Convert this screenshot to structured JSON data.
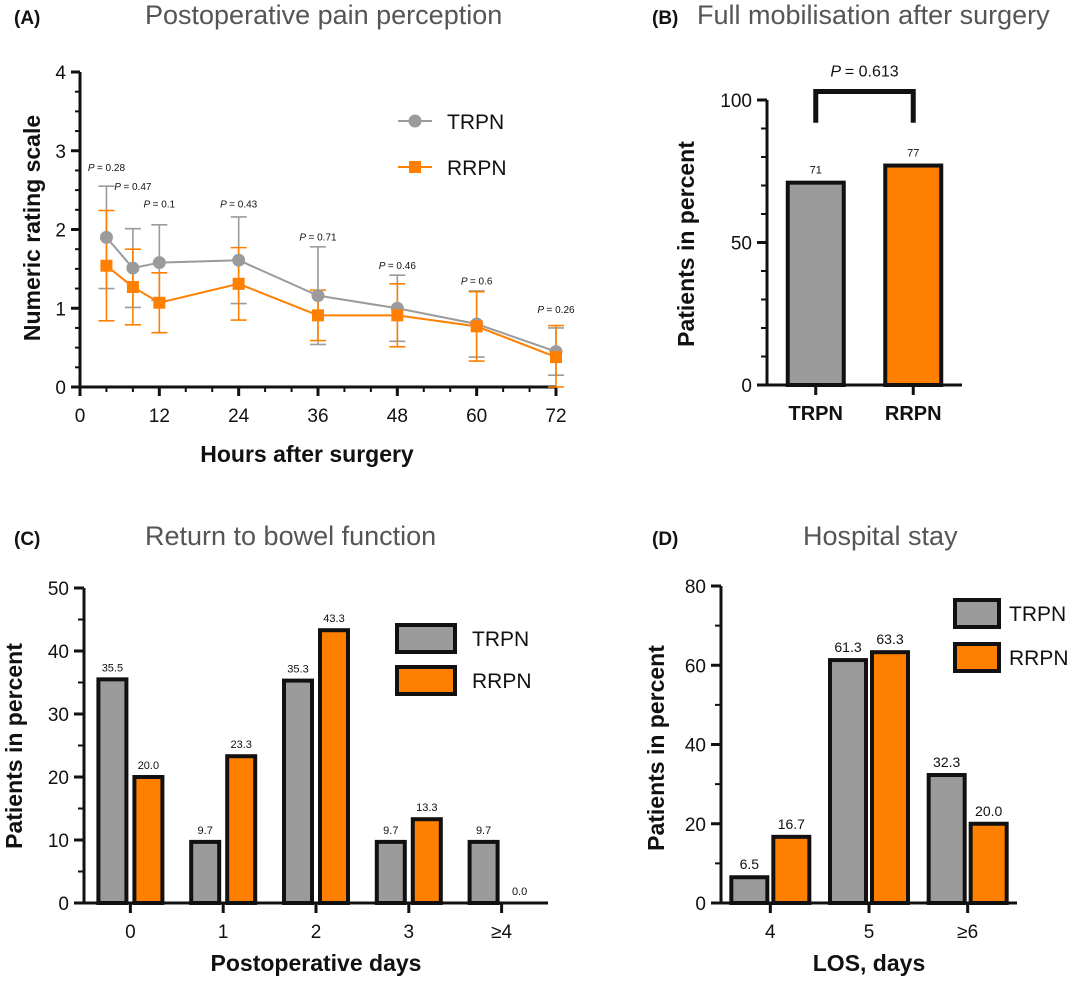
{
  "colors": {
    "TRPN": "#9b9b9b",
    "RRPN": "#ff8000",
    "ink": "#111111",
    "title": "#555555"
  },
  "chart_data": [
    {
      "panel": "(A)",
      "type": "line",
      "title": "Postoperative pain perception",
      "xlabel": "Hours after surgery",
      "ylabel": "Numeric rating scale",
      "xlim": [
        0,
        72
      ],
      "ylim": [
        0,
        4
      ],
      "xticks": [
        "0",
        "12",
        "24",
        "36",
        "48",
        "60",
        "72"
      ],
      "yticks": [
        "0",
        "1",
        "2",
        "3",
        "4"
      ],
      "legend_position": "top-right",
      "series": [
        {
          "name": "TRPN",
          "marker": "circle",
          "x": [
            4,
            8,
            12,
            24,
            36,
            48,
            60,
            72
          ],
          "y": [
            1.9,
            1.51,
            1.58,
            1.61,
            1.16,
            1.0,
            0.8,
            0.45
          ],
          "err": [
            0.65,
            0.5,
            0.48,
            0.55,
            0.62,
            0.42,
            0.42,
            0.3
          ]
        },
        {
          "name": "RRPN",
          "marker": "square",
          "x": [
            4,
            8,
            12,
            24,
            36,
            48,
            60,
            72
          ],
          "y": [
            1.54,
            1.27,
            1.07,
            1.31,
            0.91,
            0.91,
            0.77,
            0.38
          ],
          "err": [
            0.7,
            0.48,
            0.38,
            0.46,
            0.32,
            0.4,
            0.44,
            0.4
          ]
        }
      ],
      "p_values": [
        {
          "x": 4,
          "label": "= 0.28",
          "at": 2.74
        },
        {
          "x": 8,
          "label": "= 0.47",
          "at": 2.5
        },
        {
          "x": 12,
          "label": "= 0.1",
          "at": 2.28
        },
        {
          "x": 24,
          "label": "= 0.43",
          "at": 2.28
        },
        {
          "x": 36,
          "label": "= 0.71",
          "at": 1.86
        },
        {
          "x": 48,
          "label": "= 0.46",
          "at": 1.5
        },
        {
          "x": 60,
          "label": "= 0.6",
          "at": 1.3
        },
        {
          "x": 72,
          "label": "= 0.26",
          "at": 0.94
        }
      ]
    },
    {
      "panel": "(B)",
      "type": "bar",
      "title": "Full mobilisation after surgery",
      "ylabel": "Patients in percent",
      "ylim": [
        0,
        100
      ],
      "yticks": [
        "0",
        "50",
        "100"
      ],
      "categories": [
        "TRPN",
        "RRPN"
      ],
      "values": [
        71,
        77
      ],
      "value_labels": [
        "71",
        "77"
      ],
      "comparison": {
        "label": "= 0.613",
        "bracket_at": 103,
        "legs_to": 92
      }
    },
    {
      "panel": "(C)",
      "type": "bar",
      "title": "Return to bowel function",
      "xlabel": "Postoperative days",
      "ylabel": "Patients in percent",
      "ylim": [
        0,
        50
      ],
      "yticks": [
        "0",
        "10",
        "20",
        "30",
        "40",
        "50"
      ],
      "categories": [
        "0",
        "1",
        "2",
        "3",
        "≥4"
      ],
      "legend_position": "top-right",
      "series": [
        {
          "name": "TRPN",
          "values": [
            35.5,
            9.7,
            35.3,
            9.7,
            9.7
          ],
          "labels": [
            "35.5",
            "9.7",
            "35.3",
            "9.7",
            "9.7"
          ]
        },
        {
          "name": "RRPN",
          "values": [
            20.0,
            23.3,
            43.3,
            13.3,
            0.0
          ],
          "labels": [
            "20.0",
            "23.3",
            "43.3",
            "13.3",
            "0.0"
          ]
        }
      ]
    },
    {
      "panel": "(D)",
      "type": "bar",
      "title": "Hospital stay",
      "xlabel": "LOS, days",
      "ylabel": "Patients in percent",
      "ylim": [
        0,
        80
      ],
      "yticks": [
        "0",
        "20",
        "40",
        "60",
        "80"
      ],
      "categories": [
        "4",
        "5",
        "≥6"
      ],
      "legend_position": "top-right",
      "series": [
        {
          "name": "TRPN",
          "values": [
            6.5,
            61.3,
            32.3
          ],
          "labels": [
            "6.5",
            "61.3",
            "32.3"
          ]
        },
        {
          "name": "RRPN",
          "values": [
            16.7,
            63.3,
            20.0
          ],
          "labels": [
            "16.7",
            "63.3",
            "20.0"
          ]
        }
      ]
    }
  ],
  "p_symbol": "P"
}
